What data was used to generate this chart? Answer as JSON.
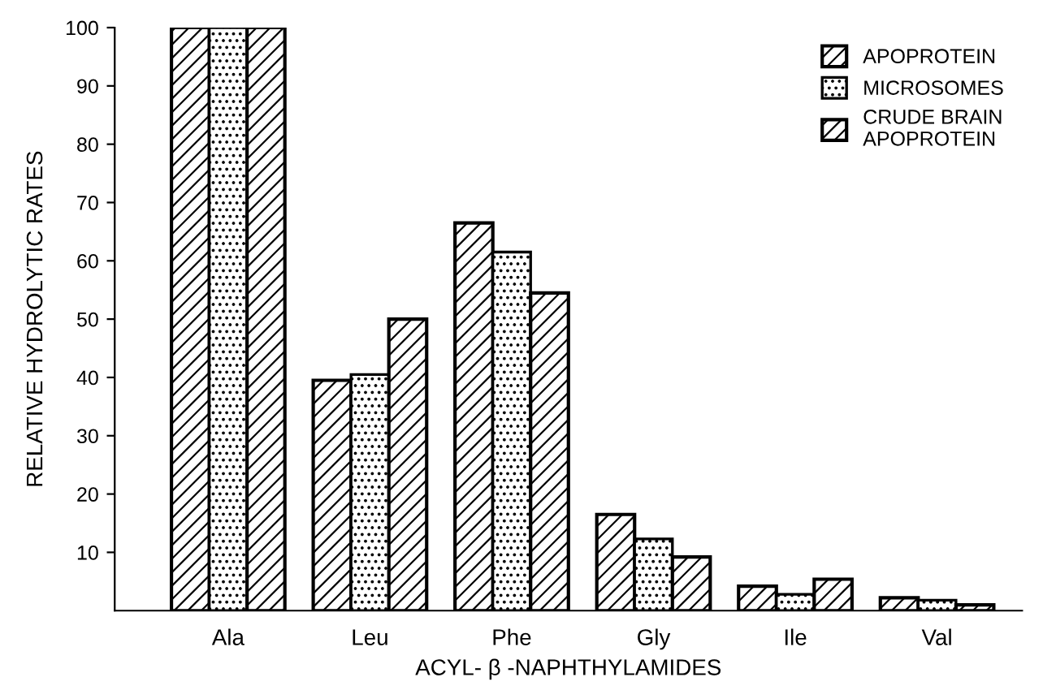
{
  "chart_data": {
    "type": "bar",
    "xlabel": "ACYL- β -NAPHTHYLAMIDES",
    "ylabel": "RELATIVE HYDROLYTIC RATES",
    "categories": [
      "Ala",
      "Leu",
      "Phe",
      "Gly",
      "Ile",
      "Val"
    ],
    "series": [
      {
        "name": "APOPROTEIN",
        "color": "#000000",
        "values": [
          100,
          39.5,
          66.5,
          16.5,
          4.2,
          2.2
        ]
      },
      {
        "name": "MICROSOMES",
        "color": "#000000",
        "values": [
          100,
          40.5,
          61.5,
          12.3,
          2.8,
          1.8
        ]
      },
      {
        "name": "CRUDE BRAIN\nAPOPROTEIN",
        "color": "#000000",
        "values": [
          100,
          50,
          54.5,
          9.2,
          5.4,
          1.0
        ]
      }
    ],
    "ylim": [
      0,
      100
    ],
    "yticks": [
      10,
      20,
      30,
      40,
      50,
      60,
      70,
      80,
      90,
      100
    ],
    "grid": false,
    "legend": "top right"
  }
}
